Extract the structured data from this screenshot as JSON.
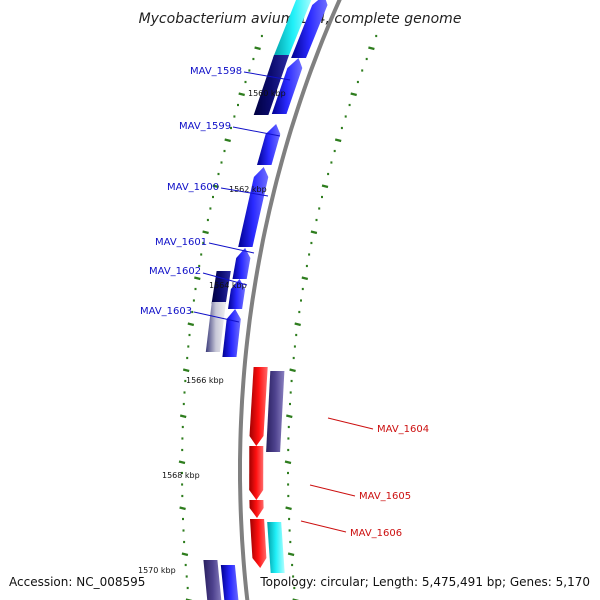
{
  "title": "Mycobacterium avium 104, complete genome",
  "footer": {
    "accession": "Accession: NC_008595",
    "summary": "Topology: circular; Length: 5,475,491 bp; Genes: 5,170"
  },
  "scale_labels": [
    "1560 kbp",
    "1562 kbp",
    "1564 kbp",
    "1566 kbp",
    "1568 kbp",
    "1570 kbp"
  ],
  "gene_labels": [
    {
      "text": "MAV_1598",
      "color": "#1010c8"
    },
    {
      "text": "MAV_1599",
      "color": "#1010c8"
    },
    {
      "text": "MAV_1600",
      "color": "#1010c8"
    },
    {
      "text": "MAV_1601",
      "color": "#1010c8"
    },
    {
      "text": "MAV_1602",
      "color": "#1010c8"
    },
    {
      "text": "MAV_1603",
      "color": "#1010c8"
    },
    {
      "text": "MAV_1604",
      "color": "#cc1010"
    },
    {
      "text": "MAV_1605",
      "color": "#cc1010"
    },
    {
      "text": "MAV_1606",
      "color": "#cc1010"
    }
  ],
  "colors": {
    "forward": "#1a1aff",
    "reverse": "#ff1010",
    "cyan": "#10e0e8",
    "dark_navy": "#0a0a6e",
    "slate": "#4a3e8e",
    "backbone": "#808080",
    "tick": "#2e7d1e"
  }
}
